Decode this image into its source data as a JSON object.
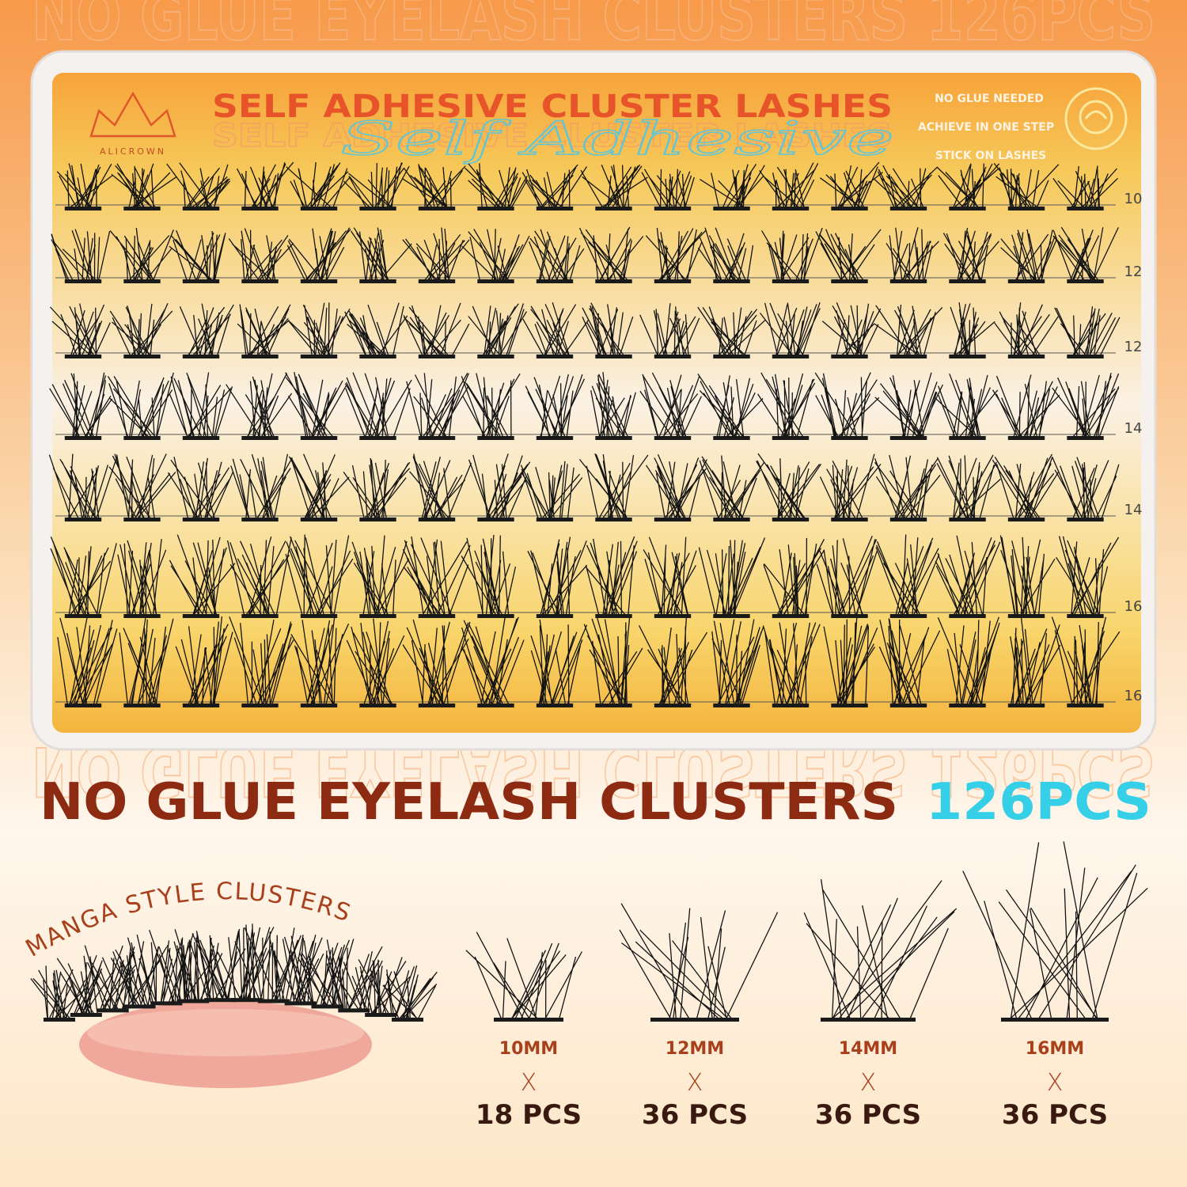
{
  "watermark": "NO GLUE EYELASH CLUSTERS 126PCS",
  "tray": {
    "brand": "ALICROWN",
    "title": "SELF ADHESIVE CLUSTER LASHES",
    "script": "Self Adhesive",
    "badges": [
      "NO GLUE NEEDED",
      "ACHIEVE IN ONE STEP",
      "STICK ON LASHES"
    ],
    "row_labels": [
      "10",
      "12",
      "12",
      "14",
      "14",
      "16",
      "16"
    ]
  },
  "headline": {
    "text": "NO GLUE EYELASH CLUSTERS",
    "count": "126PCS"
  },
  "style_label": "MANGA STYLE CLUSTERS",
  "sizes": [
    {
      "length": "10MM",
      "times": "X",
      "quantity": "18 PCS"
    },
    {
      "length": "12MM",
      "times": "X",
      "quantity": "36 PCS"
    },
    {
      "length": "14MM",
      "times": "X",
      "quantity": "36 PCS"
    },
    {
      "length": "16MM",
      "times": "X",
      "quantity": "36 PCS"
    }
  ]
}
